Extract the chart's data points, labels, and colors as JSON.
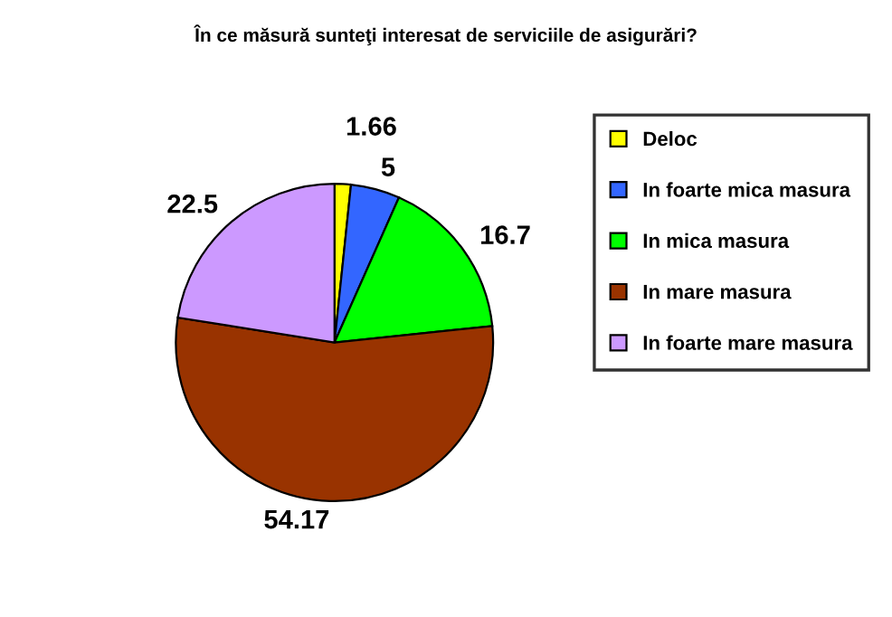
{
  "chart_data": {
    "type": "pie",
    "title": "În ce măsură sunteţi interesat de serviciile de asigurări?",
    "categories": [
      "Deloc",
      "In foarte mica masura",
      "In mica masura",
      "In mare masura",
      "In foarte mare masura"
    ],
    "values": [
      1.66,
      5,
      16.7,
      54.17,
      22.5
    ],
    "colors": [
      "#ffff00",
      "#3366ff",
      "#00ff00",
      "#993300",
      "#cc99ff"
    ],
    "data_labels": true,
    "legend": "right"
  }
}
